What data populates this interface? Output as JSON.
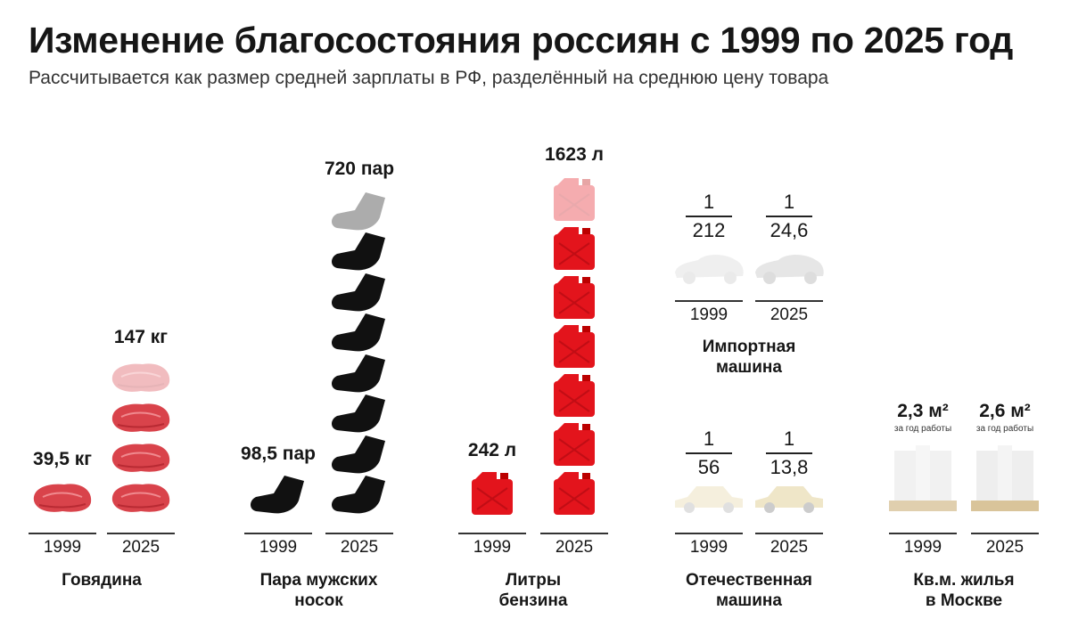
{
  "title": "Изменение благосостояния россиян с 1999 по 2025 год",
  "subtitle": "Рассчитывается как размер средней зарплаты в РФ, разделённый на среднюю цену товара",
  "colors": {
    "beef": "#d9434b",
    "socks": "#111111",
    "petrol": "#e3141c",
    "car": "#e6e6e6",
    "building": "#eeeeee"
  },
  "chart_data": {
    "type": "pictogram",
    "title": "Изменение благосостояния россиян с 1999 по 2025 год",
    "years": [
      "1999",
      "2025"
    ],
    "pictograms": [
      {
        "category": "Говядина",
        "icon": "meat-icon",
        "values": [
          39.5,
          147
        ],
        "labels": [
          "39,5 кг",
          "147 кг"
        ]
      },
      {
        "category": "Пара мужских носок",
        "icon": "sock-icon",
        "values": [
          98.5,
          720
        ],
        "labels": [
          "98,5 пар",
          "720 пар"
        ]
      },
      {
        "category": "Литры бензина",
        "icon": "jerrycan-icon",
        "values": [
          242,
          1623
        ],
        "labels": [
          "242 л",
          "1623 л"
        ]
      }
    ],
    "fractions": [
      {
        "category": "Импортная машина",
        "icon": "sports-car-icon",
        "numerator": "1",
        "values": [
          212,
          24.6
        ],
        "labels": [
          "212",
          "24,6"
        ]
      },
      {
        "category": "Отечественная машина",
        "icon": "sedan-car-icon",
        "numerator": "1",
        "values": [
          56,
          13.8
        ],
        "labels": [
          "56",
          "13,8"
        ]
      }
    ],
    "housing": {
      "category": "Кв.м. жилья в Москве",
      "icon": "apartment-building-icon",
      "values": [
        2.3,
        2.6
      ],
      "labels": [
        "2,3 м²",
        "2,6 м²"
      ],
      "note": "за год работы"
    }
  },
  "labels": {
    "beef": [
      "Говядина"
    ],
    "socks": [
      "Пара мужских",
      "носок"
    ],
    "petrol": [
      "Литры",
      "бензина"
    ],
    "import": [
      "Импортная",
      "машина"
    ],
    "domestic": [
      "Отечественная",
      "машина"
    ],
    "housing": [
      "Кв.м. жилья",
      "в Москве"
    ]
  }
}
